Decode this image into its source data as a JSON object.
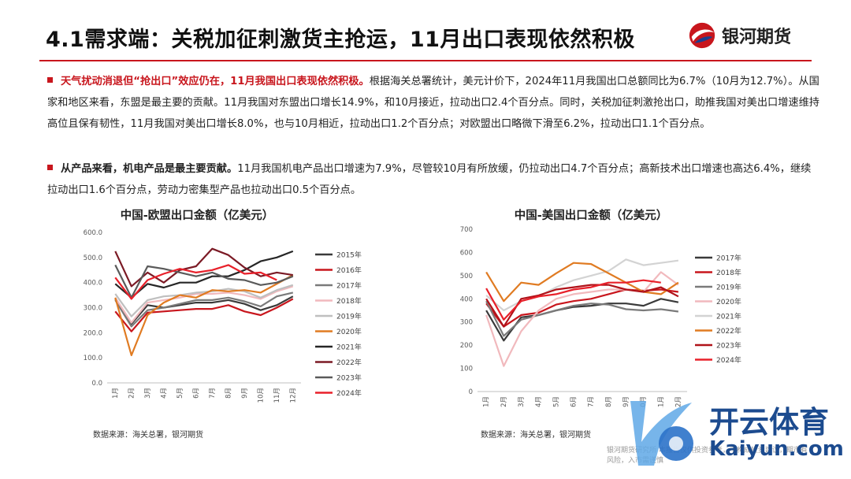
{
  "slide": {
    "title": "4.1需求端：关税加征刺激货主抢运，11月出口表现依然积极",
    "logo_text": "银河期货",
    "para1_highlight": "天气扰动消退但“抢出口”效应仍在，11月我国出口表现依然积极。",
    "para1_body": "根据海关总署统计，美元计价下，2024年11月我国出口总额同比为6.7%（10月为12.7%）。从国家和地区来看，东盟是最主要的贡献。11月我国对东盟出口增长14.9%，和10月接近，拉动出口2.4个百分点。同时，关税加征刺激抢出口，助推我国对美出口增速维持高位且保有韧性，11月我国对美出口增长8.0%，也与10月相近，拉动出口1.2个百分点；对欧盟出口略微下滑至6.2%，拉动出口1.1个百分点。",
    "para2_highlight": "从产品来看，机电产品是最主要贡献。",
    "para2_body": "11月我国机电产品出口增速为7.9%，尽管较10月有所放缓，仍拉动出口4.7个百分点；高新技术出口增速也高达6.4%，继续拉动出口1.6个百分点，劳动力密集型产品也拉动出口0.5个百分点。",
    "source_left": "数据来源：海关总署，银河期货",
    "source_right": "数据来源：海关总署，银河期货",
    "footer_note": "银河期货研究所 本报告仅供投资参考，不构成投资建议，期市有风险，入市需谨慎",
    "watermark_cn": "开云体育",
    "watermark_en": "Kaiyun.com",
    "colors": {
      "accent": "#c8161d",
      "watermark": "#1c4b8f"
    }
  },
  "chart_data": [
    {
      "type": "line",
      "title": "中国-欧盟出口金额（亿美元）",
      "categories": [
        "1月",
        "2月",
        "3月",
        "4月",
        "5月",
        "6月",
        "7月",
        "8月",
        "9月",
        "10月",
        "11月",
        "12月"
      ],
      "ylim": [
        0,
        600
      ],
      "yticks": [
        "0.0",
        "100.0",
        "200.0",
        "300.0",
        "400.0",
        "500.0",
        "600.0"
      ],
      "grid": false,
      "legend": "right",
      "series": [
        {
          "name": "2015年",
          "color": "#3a3a3a",
          "values": [
            335,
            235,
            310,
            300,
            310,
            320,
            320,
            330,
            315,
            290,
            310,
            345
          ]
        },
        {
          "name": "2016年",
          "color": "#c8161d",
          "values": [
            285,
            205,
            280,
            285,
            290,
            295,
            295,
            310,
            285,
            270,
            300,
            335
          ]
        },
        {
          "name": "2017年",
          "color": "#7a7a7a",
          "values": [
            330,
            225,
            290,
            300,
            315,
            330,
            330,
            340,
            325,
            305,
            345,
            360
          ]
        },
        {
          "name": "2018年",
          "color": "#f1b9bd",
          "values": [
            340,
            240,
            320,
            330,
            340,
            355,
            355,
            360,
            350,
            335,
            365,
            385
          ]
        },
        {
          "name": "2019年",
          "color": "#bfbfbf",
          "values": [
            355,
            265,
            330,
            345,
            350,
            360,
            365,
            375,
            365,
            340,
            370,
            390
          ]
        },
        {
          "name": "2020年",
          "color": "#e07b22",
          "values": [
            340,
            110,
            270,
            320,
            350,
            340,
            370,
            365,
            370,
            360,
            395,
            430
          ]
        },
        {
          "name": "2021年",
          "color": "#262626",
          "values": [
            395,
            340,
            395,
            380,
            400,
            400,
            425,
            425,
            450,
            485,
            500,
            525
          ]
        },
        {
          "name": "2022年",
          "color": "#7b1a25",
          "values": [
            525,
            385,
            440,
            400,
            450,
            465,
            535,
            510,
            460,
            425,
            440,
            430
          ]
        },
        {
          "name": "2023年",
          "color": "#5a5a5a",
          "values": [
            470,
            340,
            465,
            455,
            440,
            425,
            440,
            415,
            410,
            390,
            400,
            425
          ]
        },
        {
          "name": "2024年",
          "color": "#e8202a",
          "values": [
            420,
            335,
            410,
            435,
            455,
            440,
            450,
            470,
            435,
            440,
            410,
            null
          ]
        }
      ]
    },
    {
      "type": "line",
      "title": "中国-美国出口金额（亿美元）",
      "categories": [
        "1月",
        "2月",
        "3月",
        "4月",
        "5月",
        "6月",
        "7月",
        "8月",
        "9月",
        "10月",
        "11月",
        "12月"
      ],
      "ylim": [
        0,
        700
      ],
      "yticks": [
        "0",
        "100",
        "200",
        "300",
        "400",
        "500",
        "600",
        "700"
      ],
      "grid": false,
      "legend": "right",
      "series": [
        {
          "name": "2017年",
          "color": "#3a3a3a",
          "values": [
            350,
            220,
            320,
            330,
            350,
            365,
            370,
            380,
            380,
            370,
            400,
            385
          ]
        },
        {
          "name": "2018年",
          "color": "#c8161d",
          "values": [
            380,
            280,
            330,
            340,
            375,
            390,
            400,
            420,
            440,
            435,
            440,
            430
          ]
        },
        {
          "name": "2019年",
          "color": "#7a7a7a",
          "values": [
            390,
            240,
            310,
            330,
            350,
            370,
            380,
            375,
            355,
            350,
            355,
            345
          ]
        },
        {
          "name": "2020年",
          "color": "#f1b9bd",
          "values": [
            330,
            110,
            260,
            350,
            400,
            420,
            430,
            440,
            440,
            430,
            515,
            460
          ]
        },
        {
          "name": "2021年",
          "color": "#d3d3d3",
          "values": [
            415,
            350,
            390,
            410,
            450,
            480,
            500,
            520,
            570,
            545,
            555,
            565
          ]
        },
        {
          "name": "2022年",
          "color": "#e07b22",
          "values": [
            515,
            390,
            470,
            460,
            510,
            555,
            550,
            510,
            470,
            430,
            420,
            470
          ]
        },
        {
          "name": "2023年",
          "color": "#b01219",
          "values": [
            400,
            280,
            400,
            415,
            440,
            450,
            460,
            460,
            440,
            430,
            450,
            410
          ]
        },
        {
          "name": "2024年",
          "color": "#e8202a",
          "values": [
            445,
            310,
            390,
            410,
            420,
            440,
            450,
            470,
            470,
            480,
            470,
            null
          ]
        }
      ]
    }
  ]
}
